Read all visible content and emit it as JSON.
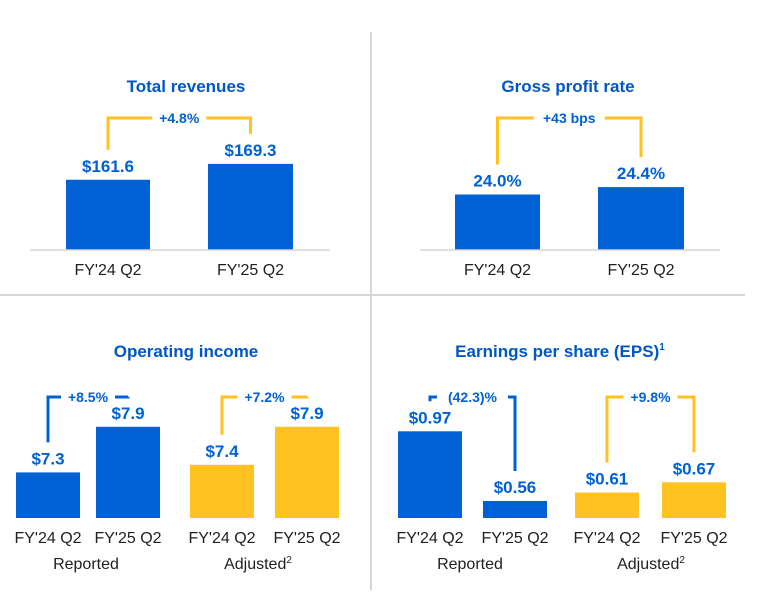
{
  "colors": {
    "walmart_blue": "#0061d5",
    "walmart_yellow": "#ffc220",
    "title_blue": "#0057c8",
    "bracket_yellow": "#ffc220",
    "bracket_blue": "#0061d5"
  },
  "chart_data": [
    {
      "type": "bar",
      "title": "Total revenues",
      "categories": [
        "FY'24 Q2",
        "FY'25 Q2"
      ],
      "values": [
        161.6,
        169.3
      ],
      "value_labels": [
        "$161.6",
        "$169.3"
      ],
      "change_label": "+4.8%",
      "change_color": "#ffc220",
      "bar_color": "#0061d5"
    },
    {
      "type": "bar",
      "title": "Gross profit rate",
      "categories": [
        "FY'24 Q2",
        "FY'25 Q2"
      ],
      "values": [
        24.0,
        24.4
      ],
      "value_labels": [
        "24.0%",
        "24.4%"
      ],
      "change_label": "+43 bps",
      "change_color": "#ffc220",
      "bar_color": "#0061d5"
    },
    {
      "type": "bar",
      "title": "Operating income",
      "groups": [
        {
          "label": "Reported",
          "categories": [
            "FY'24 Q2",
            "FY'25 Q2"
          ],
          "values": [
            7.3,
            7.9
          ],
          "value_labels": [
            "$7.3",
            "$7.9"
          ],
          "change_label": "+8.5%",
          "color": "#0061d5"
        },
        {
          "label": "Adjusted",
          "label_sup": "2",
          "categories": [
            "FY'24 Q2",
            "FY'25 Q2"
          ],
          "values": [
            7.4,
            7.9
          ],
          "value_labels": [
            "$7.4",
            "$7.9"
          ],
          "change_label": "+7.2%",
          "color": "#ffc220"
        }
      ]
    },
    {
      "type": "bar",
      "title": "Earnings per share (EPS)",
      "title_sup": "1",
      "groups": [
        {
          "label": "Reported",
          "categories": [
            "FY'24 Q2",
            "FY'25 Q2"
          ],
          "values": [
            0.97,
            0.56
          ],
          "value_labels": [
            "$0.97",
            "$0.56"
          ],
          "change_label": "(42.3)%",
          "color": "#0061d5"
        },
        {
          "label": "Adjusted",
          "label_sup": "2",
          "categories": [
            "FY'24 Q2",
            "FY'25 Q2"
          ],
          "values": [
            0.61,
            0.67
          ],
          "value_labels": [
            "$0.61",
            "$0.67"
          ],
          "change_label": "+9.8%",
          "color": "#ffc220"
        }
      ]
    }
  ]
}
